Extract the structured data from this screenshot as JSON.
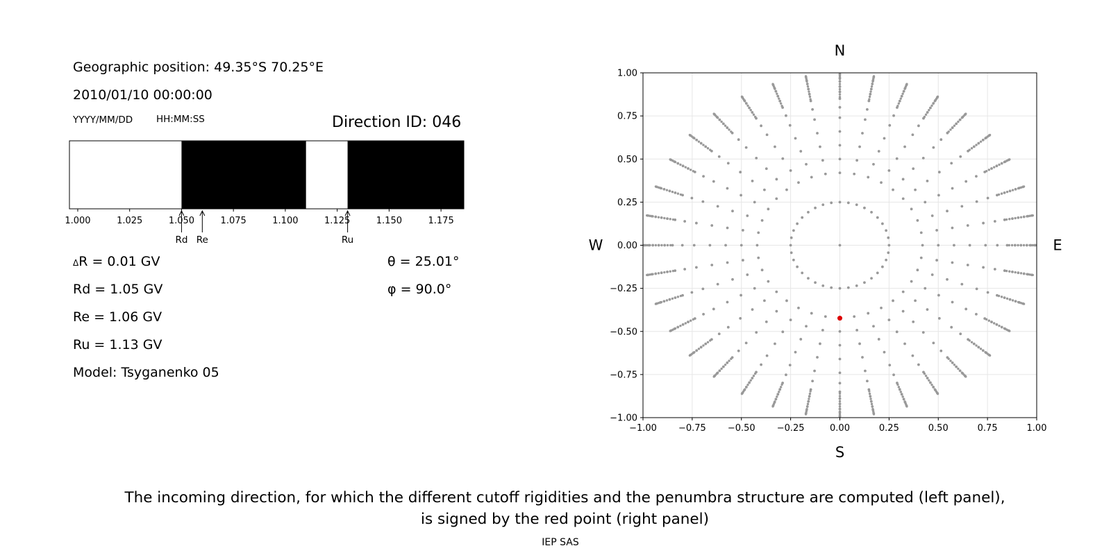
{
  "info": {
    "position": "Geographic position: 49.35°S 70.25°E",
    "datetime": "2010/01/10 00:00:00",
    "date_format": "YYYY/MM/DD",
    "time_format": "HH:MM:SS",
    "direction_id": "Direction ID: 046"
  },
  "params": {
    "delta_r": {
      "prefix": "Δ",
      "text": "R = 0.01 GV"
    },
    "rd": "Rd = 1.05 GV",
    "re": "Re = 1.06 GV",
    "ru": "Ru = 1.13 GV",
    "model": "Model: Tsyganenko 05",
    "theta": "θ = 25.01°",
    "phi": "φ = 90.0°"
  },
  "chart_data": [
    {
      "type": "penumbra-bar",
      "xlim": [
        0.996,
        1.186
      ],
      "ticks": [
        1.0,
        1.025,
        1.05,
        1.075,
        1.1,
        1.125,
        1.15,
        1.175
      ],
      "tick_labels": [
        "1.000",
        "1.025",
        "1.050",
        "1.075",
        "1.100",
        "1.125",
        "1.150",
        "1.175"
      ],
      "segments": [
        {
          "start": 0.996,
          "end": 1.05,
          "state": "allowed",
          "color": "#ffffff"
        },
        {
          "start": 1.05,
          "end": 1.11,
          "state": "forbidden",
          "color": "#000000"
        },
        {
          "start": 1.11,
          "end": 1.13,
          "state": "allowed",
          "color": "#ffffff"
        },
        {
          "start": 1.13,
          "end": 1.186,
          "state": "forbidden",
          "color": "#000000"
        }
      ],
      "markers": [
        {
          "label": "Rd",
          "value": 1.05
        },
        {
          "label": "Re",
          "value": 1.06
        },
        {
          "label": "Ru",
          "value": 1.13
        }
      ]
    },
    {
      "type": "scatter",
      "xlim": [
        -1.0,
        1.0
      ],
      "ylim": [
        -1.0,
        1.0
      ],
      "grid": true,
      "ticks": [
        -1.0,
        -0.75,
        -0.5,
        -0.25,
        0.0,
        0.25,
        0.5,
        0.75,
        1.0
      ],
      "x_tick_labels": [
        "−1.00",
        "−0.75",
        "−0.50",
        "−0.25",
        "0.00",
        "0.25",
        "0.50",
        "0.75",
        "1.00"
      ],
      "y_tick_labels": [
        "−1.00",
        "−0.75",
        "−0.50",
        "−0.25",
        "0.00",
        "0.25",
        "0.50",
        "0.75",
        "1.00"
      ],
      "directions": {
        "north": "N",
        "south": "S",
        "west": "W",
        "east": "E"
      },
      "grid_points": {
        "description": "asymptotic direction grid (gray)",
        "color": "#999999",
        "rings": [
          0.25,
          0.42,
          0.5,
          0.58,
          0.66,
          0.74,
          0.8,
          0.85,
          0.89,
          0.92,
          0.95,
          0.97,
          0.99
        ],
        "ray_step_degrees": 10
      },
      "selected_point": {
        "x": 0.0,
        "y": -0.423,
        "color": "#dd0000"
      }
    }
  ],
  "caption": {
    "line1": "The incoming direction, for which the different cutoff rigidities and the penumbra structure are computed (left panel),",
    "line2": "is signed by the red point (right panel)"
  },
  "credit": "IEP SAS"
}
